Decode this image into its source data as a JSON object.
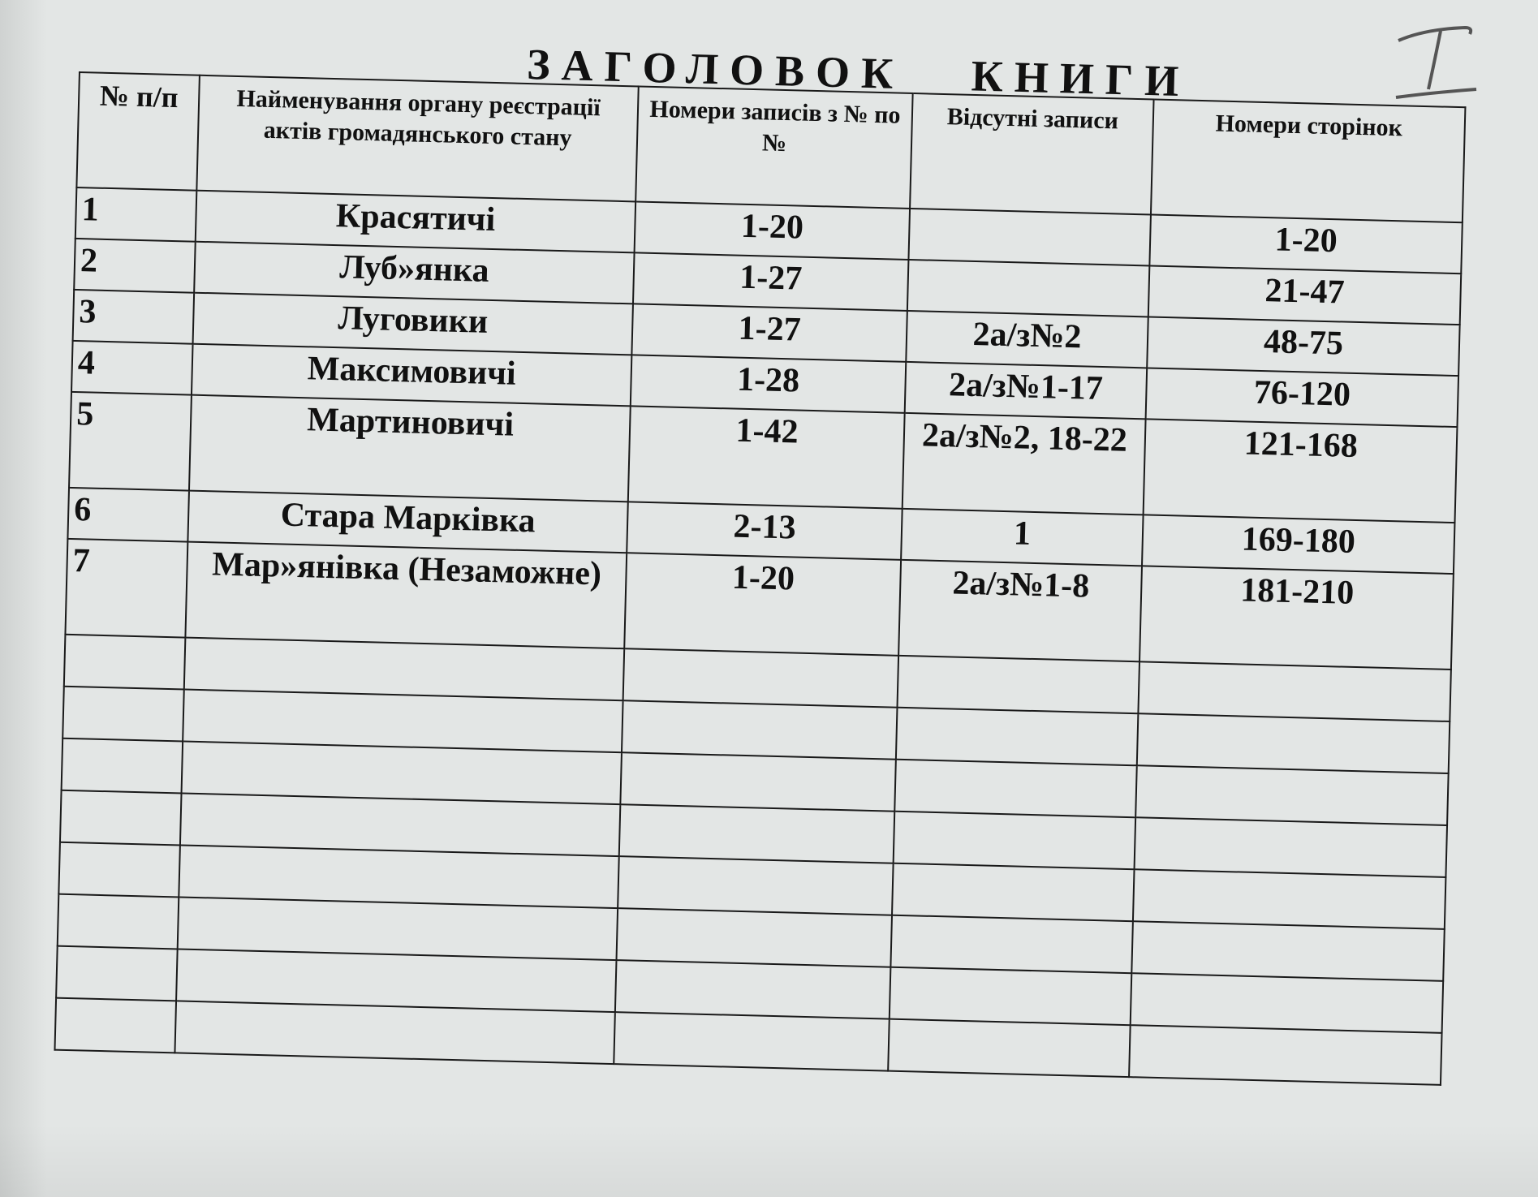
{
  "title": "ЗАГОЛОВОК   КНИГИ",
  "handwritten_mark": "I",
  "table": {
    "headers": [
      "№ п/п",
      "Найменування органу реєстрації актів громадянського стану",
      "Номери записів з № по №",
      "Відсутні записи",
      "Номери сторінок"
    ],
    "rows": [
      {
        "num": "1",
        "name": "Красятичі",
        "records": "1-20",
        "missing": "",
        "pages": "1-20"
      },
      {
        "num": "2",
        "name": "Луб»янка",
        "records": "1-27",
        "missing": "",
        "pages": "21-47"
      },
      {
        "num": "3",
        "name": "Луговики",
        "records": "1-27",
        "missing": "2а/з№2",
        "pages": "48-75"
      },
      {
        "num": "4",
        "name": "Максимовичі",
        "records": "1-28",
        "missing": "2а/з№1-17",
        "pages": "76-120"
      },
      {
        "num": "5",
        "name": "Мартиновичі",
        "records": "1-42",
        "missing": "2а/з№2, 18-22",
        "pages": "121-168"
      },
      {
        "num": "6",
        "name": "Стара Марківка",
        "records": "2-13",
        "missing": "1",
        "pages": "169-180"
      },
      {
        "num": "7",
        "name": "Мар»янівка (Незаможне)",
        "records": "1-20",
        "missing": "2а/з№1-8",
        "pages": "181-210"
      }
    ],
    "empty_rows": 8
  }
}
